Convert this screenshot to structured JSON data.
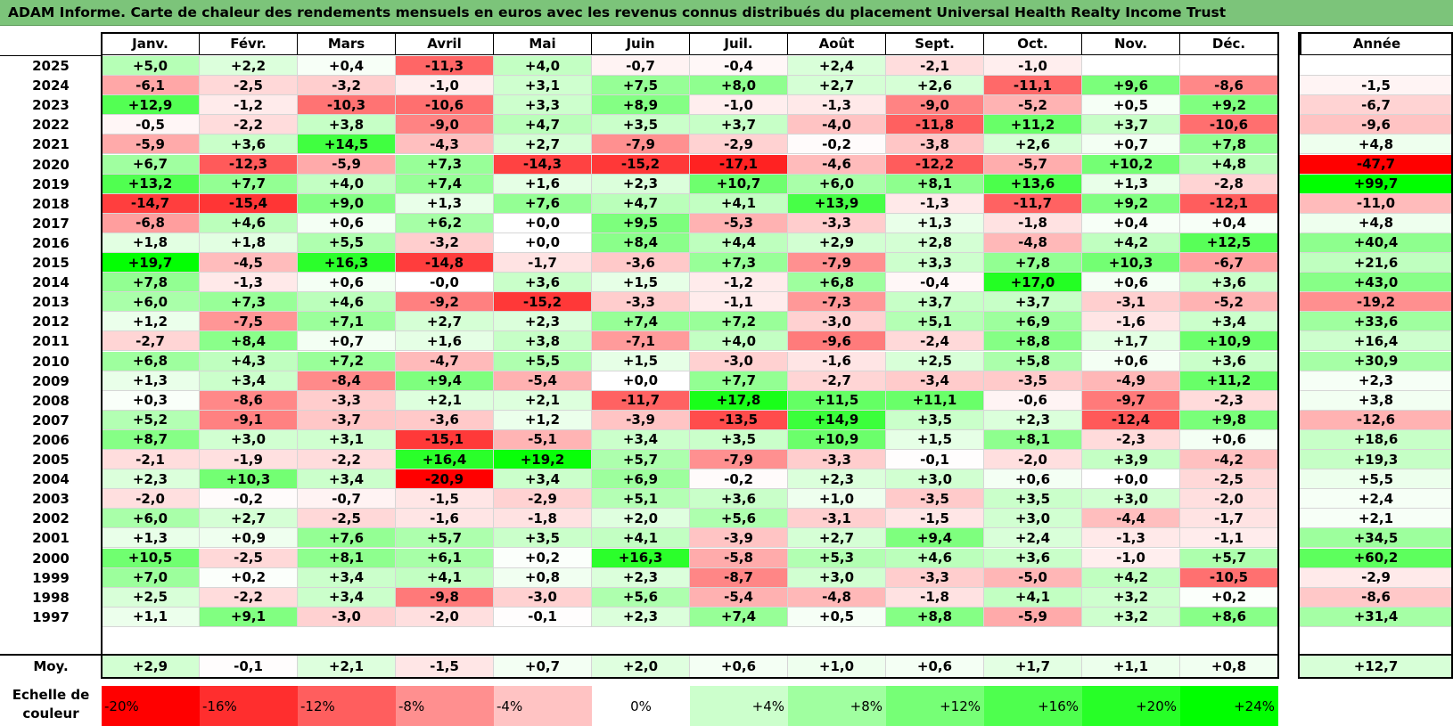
{
  "title": "ADAM Informe. Carte de chaleur des rendements mensuels en euros avec les revenus connus distribués du placement Universal Health Realty Income Trust",
  "chart_data": {
    "type": "heatmap",
    "title": "ADAM Informe. Carte de chaleur des rendements mensuels en euros avec les revenus connus distribués du placement Universal Health Realty Income Trust",
    "columns": [
      "Janv.",
      "Févr.",
      "Mars",
      "Avril",
      "Mai",
      "Juin",
      "Juil.",
      "Août",
      "Sept.",
      "Oct.",
      "Nov.",
      "Déc."
    ],
    "year_column_label": "Année",
    "rows": [
      {
        "year": "2025",
        "months": [
          "+5,0",
          "+2,2",
          "+0,4",
          "-11,3",
          "+4,0",
          "-0,7",
          "-0,4",
          "+2,4",
          "-2,1",
          "-1,0",
          "",
          ""
        ],
        "annual": ""
      },
      {
        "year": "2024",
        "months": [
          "-6,1",
          "-2,5",
          "-3,2",
          "-1,0",
          "+3,1",
          "+7,5",
          "+8,0",
          "+2,7",
          "+2,6",
          "-11,1",
          "+9,6",
          "-8,6"
        ],
        "annual": "-1,5"
      },
      {
        "year": "2023",
        "months": [
          "+12,9",
          "-1,2",
          "-10,3",
          "-10,6",
          "+3,3",
          "+8,9",
          "-1,0",
          "-1,3",
          "-9,0",
          "-5,2",
          "+0,5",
          "+9,2"
        ],
        "annual": "-6,7"
      },
      {
        "year": "2022",
        "months": [
          "-0,5",
          "-2,2",
          "+3,8",
          "-9,0",
          "+4,7",
          "+3,5",
          "+3,7",
          "-4,0",
          "-11,8",
          "+11,2",
          "+3,7",
          "-10,6"
        ],
        "annual": "-9,6"
      },
      {
        "year": "2021",
        "months": [
          "-5,9",
          "+3,6",
          "+14,5",
          "-4,3",
          "+2,7",
          "-7,9",
          "-2,9",
          "-0,2",
          "-3,8",
          "+2,6",
          "+0,7",
          "+7,8"
        ],
        "annual": "+4,8"
      },
      {
        "year": "2020",
        "months": [
          "+6,7",
          "-12,3",
          "-5,9",
          "+7,3",
          "-14,3",
          "-15,2",
          "-17,1",
          "-4,6",
          "-12,2",
          "-5,7",
          "+10,2",
          "+4,8"
        ],
        "annual": "-47,7"
      },
      {
        "year": "2019",
        "months": [
          "+13,2",
          "+7,7",
          "+4,0",
          "+7,4",
          "+1,6",
          "+2,3",
          "+10,7",
          "+6,0",
          "+8,1",
          "+13,6",
          "+1,3",
          "-2,8"
        ],
        "annual": "+99,7"
      },
      {
        "year": "2018",
        "months": [
          "-14,7",
          "-15,4",
          "+9,0",
          "+1,3",
          "+7,6",
          "+4,7",
          "+4,1",
          "+13,9",
          "-1,3",
          "-11,7",
          "+9,2",
          "-12,1"
        ],
        "annual": "-11,0"
      },
      {
        "year": "2017",
        "months": [
          "-6,8",
          "+4,6",
          "+0,6",
          "+6,2",
          "+0,0",
          "+9,5",
          "-5,3",
          "-3,3",
          "+1,3",
          "-1,8",
          "+0,4",
          "+0,4"
        ],
        "annual": "+4,8"
      },
      {
        "year": "2016",
        "months": [
          "+1,8",
          "+1,8",
          "+5,5",
          "-3,2",
          "+0,0",
          "+8,4",
          "+4,4",
          "+2,9",
          "+2,8",
          "-4,8",
          "+4,2",
          "+12,5"
        ],
        "annual": "+40,4"
      },
      {
        "year": "2015",
        "months": [
          "+19,7",
          "-4,5",
          "+16,3",
          "-14,8",
          "-1,7",
          "-3,6",
          "+7,3",
          "-7,9",
          "+3,3",
          "+7,8",
          "+10,3",
          "-6,7"
        ],
        "annual": "+21,6"
      },
      {
        "year": "2014",
        "months": [
          "+7,8",
          "-1,3",
          "+0,6",
          "-0,0",
          "+3,6",
          "+1,5",
          "-1,2",
          "+6,8",
          "-0,4",
          "+17,0",
          "+0,6",
          "+3,6"
        ],
        "annual": "+43,0"
      },
      {
        "year": "2013",
        "months": [
          "+6,0",
          "+7,3",
          "+4,6",
          "-9,2",
          "-15,2",
          "-3,3",
          "-1,1",
          "-7,3",
          "+3,7",
          "+3,7",
          "-3,1",
          "-5,2"
        ],
        "annual": "-19,2"
      },
      {
        "year": "2012",
        "months": [
          "+1,2",
          "-7,5",
          "+7,1",
          "+2,7",
          "+2,3",
          "+7,4",
          "+7,2",
          "-3,0",
          "+5,1",
          "+6,9",
          "-1,6",
          "+3,4"
        ],
        "annual": "+33,6"
      },
      {
        "year": "2011",
        "months": [
          "-2,7",
          "+8,4",
          "+0,7",
          "+1,6",
          "+3,8",
          "-7,1",
          "+4,0",
          "-9,6",
          "-2,4",
          "+8,8",
          "+1,7",
          "+10,9"
        ],
        "annual": "+16,4"
      },
      {
        "year": "2010",
        "months": [
          "+6,8",
          "+4,3",
          "+7,2",
          "-4,7",
          "+5,5",
          "+1,5",
          "-3,0",
          "-1,6",
          "+2,5",
          "+5,8",
          "+0,6",
          "+3,6"
        ],
        "annual": "+30,9"
      },
      {
        "year": "2009",
        "months": [
          "+1,3",
          "+3,4",
          "-8,4",
          "+9,4",
          "-5,4",
          "+0,0",
          "+7,7",
          "-2,7",
          "-3,4",
          "-3,5",
          "-4,9",
          "+11,2"
        ],
        "annual": "+2,3"
      },
      {
        "year": "2008",
        "months": [
          "+0,3",
          "-8,6",
          "-3,3",
          "+2,1",
          "+2,1",
          "-11,7",
          "+17,8",
          "+11,5",
          "+11,1",
          "-0,6",
          "-9,7",
          "-2,3"
        ],
        "annual": "+3,8"
      },
      {
        "year": "2007",
        "months": [
          "+5,2",
          "-9,1",
          "-3,7",
          "-3,6",
          "+1,2",
          "-3,9",
          "-13,5",
          "+14,9",
          "+3,5",
          "+2,3",
          "-12,4",
          "+9,8"
        ],
        "annual": "-12,6"
      },
      {
        "year": "2006",
        "months": [
          "+8,7",
          "+3,0",
          "+3,1",
          "-15,1",
          "-5,1",
          "+3,4",
          "+3,5",
          "+10,9",
          "+1,5",
          "+8,1",
          "-2,3",
          "+0,6"
        ],
        "annual": "+18,6"
      },
      {
        "year": "2005",
        "months": [
          "-2,1",
          "-1,9",
          "-2,2",
          "+16,4",
          "+19,2",
          "+5,7",
          "-7,9",
          "-3,3",
          "-0,1",
          "-2,0",
          "+3,9",
          "-4,2"
        ],
        "annual": "+19,3"
      },
      {
        "year": "2004",
        "months": [
          "+2,3",
          "+10,3",
          "+3,4",
          "-20,9",
          "+3,4",
          "+6,9",
          "-0,2",
          "+2,3",
          "+3,0",
          "+0,6",
          "+0,0",
          "-2,5"
        ],
        "annual": "+5,5"
      },
      {
        "year": "2003",
        "months": [
          "-2,0",
          "-0,2",
          "-0,7",
          "-1,5",
          "-2,9",
          "+5,1",
          "+3,6",
          "+1,0",
          "-3,5",
          "+3,5",
          "+3,0",
          "-2,0"
        ],
        "annual": "+2,4"
      },
      {
        "year": "2002",
        "months": [
          "+6,0",
          "+2,7",
          "-2,5",
          "-1,6",
          "-1,8",
          "+2,0",
          "+5,6",
          "-3,1",
          "-1,5",
          "+3,0",
          "-4,4",
          "-1,7"
        ],
        "annual": "+2,1"
      },
      {
        "year": "2001",
        "months": [
          "+1,3",
          "+0,9",
          "+7,6",
          "+5,7",
          "+3,5",
          "+4,1",
          "-3,9",
          "+2,7",
          "+9,4",
          "+2,4",
          "-1,3",
          "-1,1"
        ],
        "annual": "+34,5"
      },
      {
        "year": "2000",
        "months": [
          "+10,5",
          "-2,5",
          "+8,1",
          "+6,1",
          "+0,2",
          "+16,3",
          "-5,8",
          "+5,3",
          "+4,6",
          "+3,6",
          "-1,0",
          "+5,7"
        ],
        "annual": "+60,2"
      },
      {
        "year": "1999",
        "months": [
          "+7,0",
          "+0,2",
          "+3,4",
          "+4,1",
          "+0,8",
          "+2,3",
          "-8,7",
          "+3,0",
          "-3,3",
          "-5,0",
          "+4,2",
          "-10,5"
        ],
        "annual": "-2,9"
      },
      {
        "year": "1998",
        "months": [
          "+2,5",
          "-2,2",
          "+3,4",
          "-9,8",
          "-3,0",
          "+5,6",
          "-5,4",
          "-4,8",
          "-1,8",
          "+4,1",
          "+3,2",
          "+0,2"
        ],
        "annual": "-8,6"
      },
      {
        "year": "1997",
        "months": [
          "+1,1",
          "+9,1",
          "-3,0",
          "-2,0",
          "-0,1",
          "+2,3",
          "+7,4",
          "+0,5",
          "+8,8",
          "-5,9",
          "+3,2",
          "+8,6"
        ],
        "annual": "+31,4"
      }
    ],
    "average": {
      "label": "Moy.",
      "months": [
        "+2,9",
        "-0,1",
        "+2,1",
        "-1,5",
        "+0,7",
        "+2,0",
        "+0,6",
        "+1,0",
        "+0,6",
        "+1,7",
        "+1,1",
        "+0,8"
      ],
      "annual": "+12,7"
    },
    "scale": {
      "label": "Echelle de couleur",
      "steps": [
        "-20%",
        "-16%",
        "-12%",
        "-8%",
        "-4%",
        "0%",
        "+4%",
        "+8%",
        "+12%",
        "+16%",
        "+20%",
        "+24%"
      ],
      "values": [
        -20,
        -16,
        -12,
        -8,
        -4,
        0,
        4,
        8,
        12,
        16,
        20,
        24
      ]
    },
    "color_neg": "#ff0000",
    "color_pos": "#00ff00",
    "color_zero": "#ffffff"
  }
}
